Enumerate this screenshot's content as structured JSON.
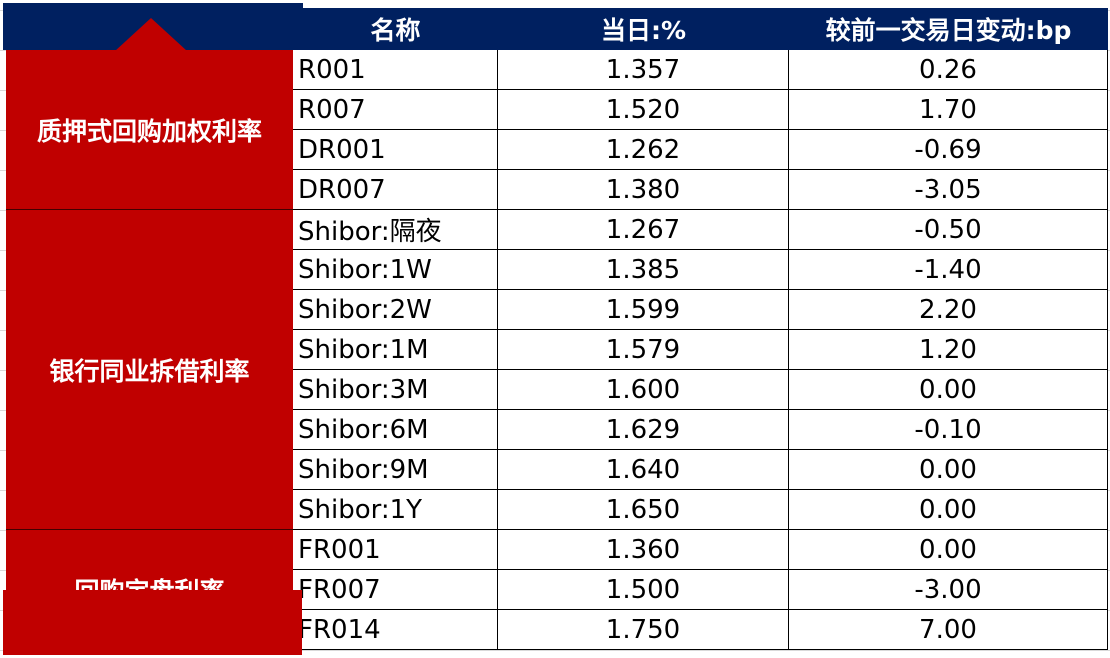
{
  "header": {
    "name": "名称",
    "today": "当日:%",
    "change": "较前一交易日变动:bp"
  },
  "colors": {
    "header": "#002060",
    "group": "#C00000"
  },
  "groups": [
    {
      "label": "质押式回购加权利率",
      "rows": 4
    },
    {
      "label": "银行同业拆借利率",
      "rows": 8
    },
    {
      "label": "回购定盘利率",
      "rows": 3
    }
  ],
  "rows": [
    {
      "name": "R001",
      "today": "1.357",
      "change": "0.26"
    },
    {
      "name": "R007",
      "today": "1.520",
      "change": "1.70"
    },
    {
      "name": "DR001",
      "today": "1.262",
      "change": "-0.69"
    },
    {
      "name": "DR007",
      "today": "1.380",
      "change": "-3.05"
    },
    {
      "name": "Shibor:隔夜",
      "today": "1.267",
      "change": "-0.50"
    },
    {
      "name": "Shibor:1W",
      "today": "1.385",
      "change": "-1.40"
    },
    {
      "name": "Shibor:2W",
      "today": "1.599",
      "change": "2.20"
    },
    {
      "name": "Shibor:1M",
      "today": "1.579",
      "change": "1.20"
    },
    {
      "name": "Shibor:3M",
      "today": "1.600",
      "change": "0.00"
    },
    {
      "name": "Shibor:6M",
      "today": "1.629",
      "change": "-0.10"
    },
    {
      "name": "Shibor:9M",
      "today": "1.640",
      "change": "0.00"
    },
    {
      "name": "Shibor:1Y",
      "today": "1.650",
      "change": "0.00"
    },
    {
      "name": "FR001",
      "today": "1.360",
      "change": "0.00"
    },
    {
      "name": "FR007",
      "today": "1.500",
      "change": "-3.00"
    },
    {
      "name": "FR014",
      "today": "1.750",
      "change": "7.00"
    }
  ]
}
